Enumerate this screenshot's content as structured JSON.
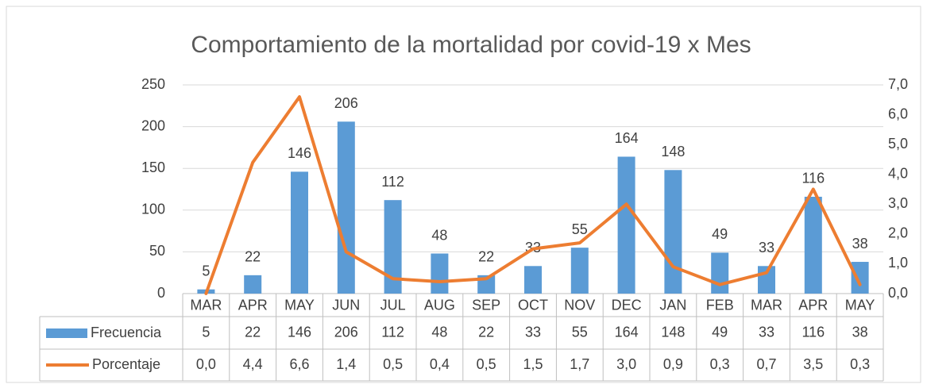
{
  "chart_data": {
    "type": "bar_line_table",
    "title": "Comportamiento de la mortalidad por covid-19 x Mes",
    "categories": [
      "MAR",
      "APR",
      "MAY",
      "JUN",
      "JUL",
      "AUG",
      "SEP",
      "OCT",
      "NOV",
      "DEC",
      "JAN",
      "FEB",
      "MAR",
      "APR",
      "MAY"
    ],
    "series": [
      {
        "name": "Frecuencia",
        "color": "#5b9bd5",
        "values": [
          5,
          22,
          146,
          206,
          112,
          48,
          22,
          33,
          55,
          164,
          148,
          49,
          33,
          116,
          38
        ]
      },
      {
        "name": "Porcentaje",
        "color": "#ed7d31",
        "axis": "y2",
        "values": [
          0.0,
          4.4,
          6.6,
          1.4,
          0.5,
          0.4,
          0.5,
          1.5,
          1.7,
          3.0,
          0.9,
          0.3,
          0.7,
          3.5,
          0.3
        ],
        "value_labels": [
          "0,0",
          "4,4",
          "6,6",
          "1,4",
          "0,5",
          "0,4",
          "0,5",
          "1,5",
          "1,7",
          "3,0",
          "0,9",
          "0,3",
          "0,7",
          "3,5",
          "0,3"
        ]
      }
    ],
    "ylim": [
      0,
      250
    ],
    "yticks": [
      0,
      50,
      100,
      150,
      200,
      250
    ],
    "y2lim": [
      0,
      7
    ],
    "y2ticks": [
      {
        "value": 0,
        "label": "0,0"
      },
      {
        "value": 1,
        "label": "1,0"
      },
      {
        "value": 2,
        "label": "2,0"
      },
      {
        "value": 3,
        "label": "3,0"
      },
      {
        "value": 4,
        "label": "4,0"
      },
      {
        "value": 5,
        "label": "5,0"
      },
      {
        "value": 6,
        "label": "6,0"
      },
      {
        "value": 7,
        "label": "7,0"
      }
    ],
    "grid": true
  }
}
